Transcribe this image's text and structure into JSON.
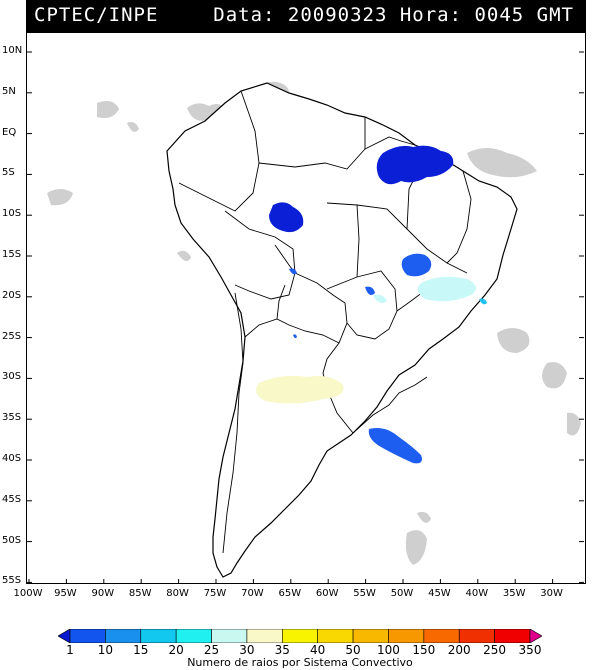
{
  "header": {
    "left": "CPTEC/INPE",
    "right": "Data: 20090323 Hora: 0045 GMT"
  },
  "map": {
    "latitudes": [
      "10N",
      "5N",
      "EQ",
      "5S",
      "10S",
      "15S",
      "20S",
      "25S",
      "30S",
      "35S",
      "40S",
      "45S",
      "50S",
      "55S"
    ],
    "longitudes": [
      "100W",
      "95W",
      "90W",
      "85W",
      "80W",
      "75W",
      "70W",
      "65W",
      "60W",
      "55W",
      "50W",
      "45W",
      "40W",
      "35W",
      "30W"
    ],
    "colors": {
      "cloud": "#c8c8c8",
      "land": "#ffffff",
      "border": "#000000"
    },
    "systems": [
      {
        "name": "north-brazil-cluster",
        "category": "1-10",
        "color": "#0a1fd6"
      },
      {
        "name": "rondonia-cluster",
        "category": "1-10",
        "color": "#0a1fd6"
      },
      {
        "name": "goias-cluster",
        "category": "10-15",
        "color": "#1d5ef0"
      },
      {
        "name": "minas-cluster",
        "category": "25-30",
        "color": "#c8f8f8"
      },
      {
        "name": "argentina-cluster",
        "category": "30-35",
        "color": "#f8f8c8"
      },
      {
        "name": "atlantic-cluster",
        "category": "10-15",
        "color": "#1d5ef0"
      }
    ]
  },
  "colorbar": {
    "labels": [
      "1",
      "10",
      "15",
      "20",
      "25",
      "30",
      "35",
      "40",
      "50",
      "100",
      "150",
      "200",
      "250",
      "350"
    ],
    "colors": [
      "#0a1ad0",
      "#1155ee",
      "#1a90ee",
      "#12c8ee",
      "#20f0f0",
      "#c8f8f0",
      "#f8f8c8",
      "#f8f400",
      "#f8d800",
      "#f8b800",
      "#f89800",
      "#f86a00",
      "#f03000",
      "#f00000",
      "#e0008c"
    ],
    "caption": "Numero de raios por Sistema Convectivo"
  }
}
